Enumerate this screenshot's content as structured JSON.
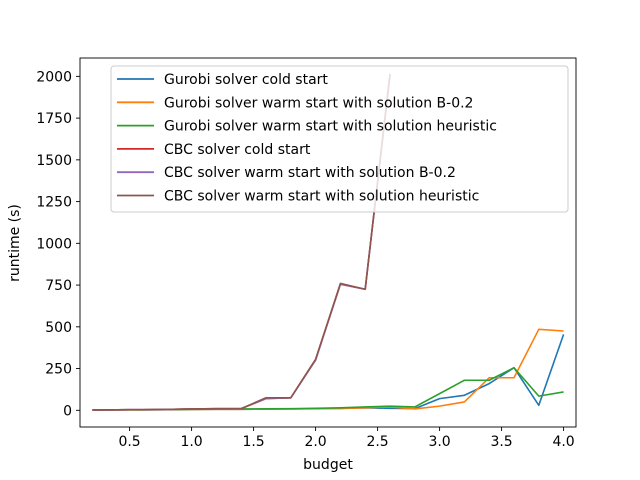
{
  "chart_data": {
    "type": "line",
    "title": "",
    "xlabel": "budget",
    "ylabel": "runtime (s)",
    "xlim": [
      0.1,
      4.1
    ],
    "ylim": [
      -100,
      2110
    ],
    "xticks": [
      0.5,
      1.0,
      1.5,
      2.0,
      2.5,
      3.0,
      3.5,
      4.0
    ],
    "xtick_labels": [
      "0.5",
      "1.0",
      "1.5",
      "2.0",
      "2.5",
      "3.0",
      "3.5",
      "4.0"
    ],
    "yticks": [
      0,
      250,
      500,
      750,
      1000,
      1250,
      1500,
      1750,
      2000
    ],
    "ytick_labels": [
      "0",
      "250",
      "500",
      "750",
      "1000",
      "1250",
      "1500",
      "1750",
      "2000"
    ],
    "grid": false,
    "legend_position": "top-center",
    "series": [
      {
        "name": "Gurobi solver cold start",
        "color": "#1f77b4",
        "x": [
          0.2,
          0.4,
          0.6,
          0.8,
          1.0,
          1.2,
          1.4,
          1.6,
          1.8,
          2.0,
          2.2,
          2.4,
          2.6,
          2.8,
          3.0,
          3.2,
          3.4,
          3.6,
          3.8,
          4.0
        ],
        "y": [
          2,
          3,
          3,
          4,
          5,
          6,
          6,
          7,
          8,
          10,
          12,
          15,
          12,
          10,
          70,
          90,
          160,
          255,
          30,
          455
        ]
      },
      {
        "name": "Gurobi solver warm start with solution B-0.2",
        "color": "#ff7f0e",
        "x": [
          0.2,
          0.4,
          0.6,
          0.8,
          1.0,
          1.2,
          1.4,
          1.6,
          1.8,
          2.0,
          2.2,
          2.4,
          2.6,
          2.8,
          3.0,
          3.2,
          3.4,
          3.6,
          3.8,
          4.0
        ],
        "y": [
          2,
          3,
          3,
          4,
          5,
          6,
          6,
          7,
          8,
          9,
          10,
          15,
          20,
          8,
          25,
          50,
          195,
          195,
          485,
          475
        ]
      },
      {
        "name": "Gurobi solver warm start with solution heuristic",
        "color": "#2ca02c",
        "x": [
          0.2,
          0.4,
          0.6,
          0.8,
          1.0,
          1.2,
          1.4,
          1.6,
          1.8,
          2.0,
          2.2,
          2.4,
          2.6,
          2.8,
          3.0,
          3.2,
          3.4,
          3.6,
          3.8,
          4.0
        ],
        "y": [
          2,
          3,
          3,
          4,
          6,
          7,
          8,
          9,
          10,
          12,
          15,
          20,
          25,
          20,
          100,
          180,
          180,
          255,
          85,
          110
        ]
      },
      {
        "name": "CBC solver cold start",
        "color": "#d62728",
        "x": [
          0.2,
          0.4,
          0.6,
          0.8,
          1.0,
          1.2,
          1.4,
          1.6,
          1.8,
          2.0,
          2.2,
          2.4,
          2.6
        ],
        "y": [
          2,
          3,
          4,
          5,
          8,
          10,
          10,
          70,
          75,
          305,
          755,
          725,
          2010
        ]
      },
      {
        "name": "CBC solver warm start with solution B-0.2",
        "color": "#9467bd",
        "x": [
          0.2,
          0.4,
          0.6,
          0.8,
          1.0,
          1.2,
          1.4,
          1.6,
          1.8,
          2.0,
          2.2,
          2.4,
          2.6
        ],
        "y": [
          2,
          3,
          4,
          5,
          8,
          10,
          10,
          70,
          75,
          300,
          755,
          725,
          2010
        ]
      },
      {
        "name": "CBC solver warm start with solution heuristic",
        "color": "#8c564b",
        "x": [
          0.2,
          0.4,
          0.6,
          0.8,
          1.0,
          1.2,
          1.4,
          1.6,
          1.8,
          2.0,
          2.2,
          2.4,
          2.6
        ],
        "y": [
          2,
          3,
          4,
          5,
          8,
          10,
          10,
          75,
          75,
          305,
          760,
          725,
          2015
        ]
      }
    ]
  }
}
